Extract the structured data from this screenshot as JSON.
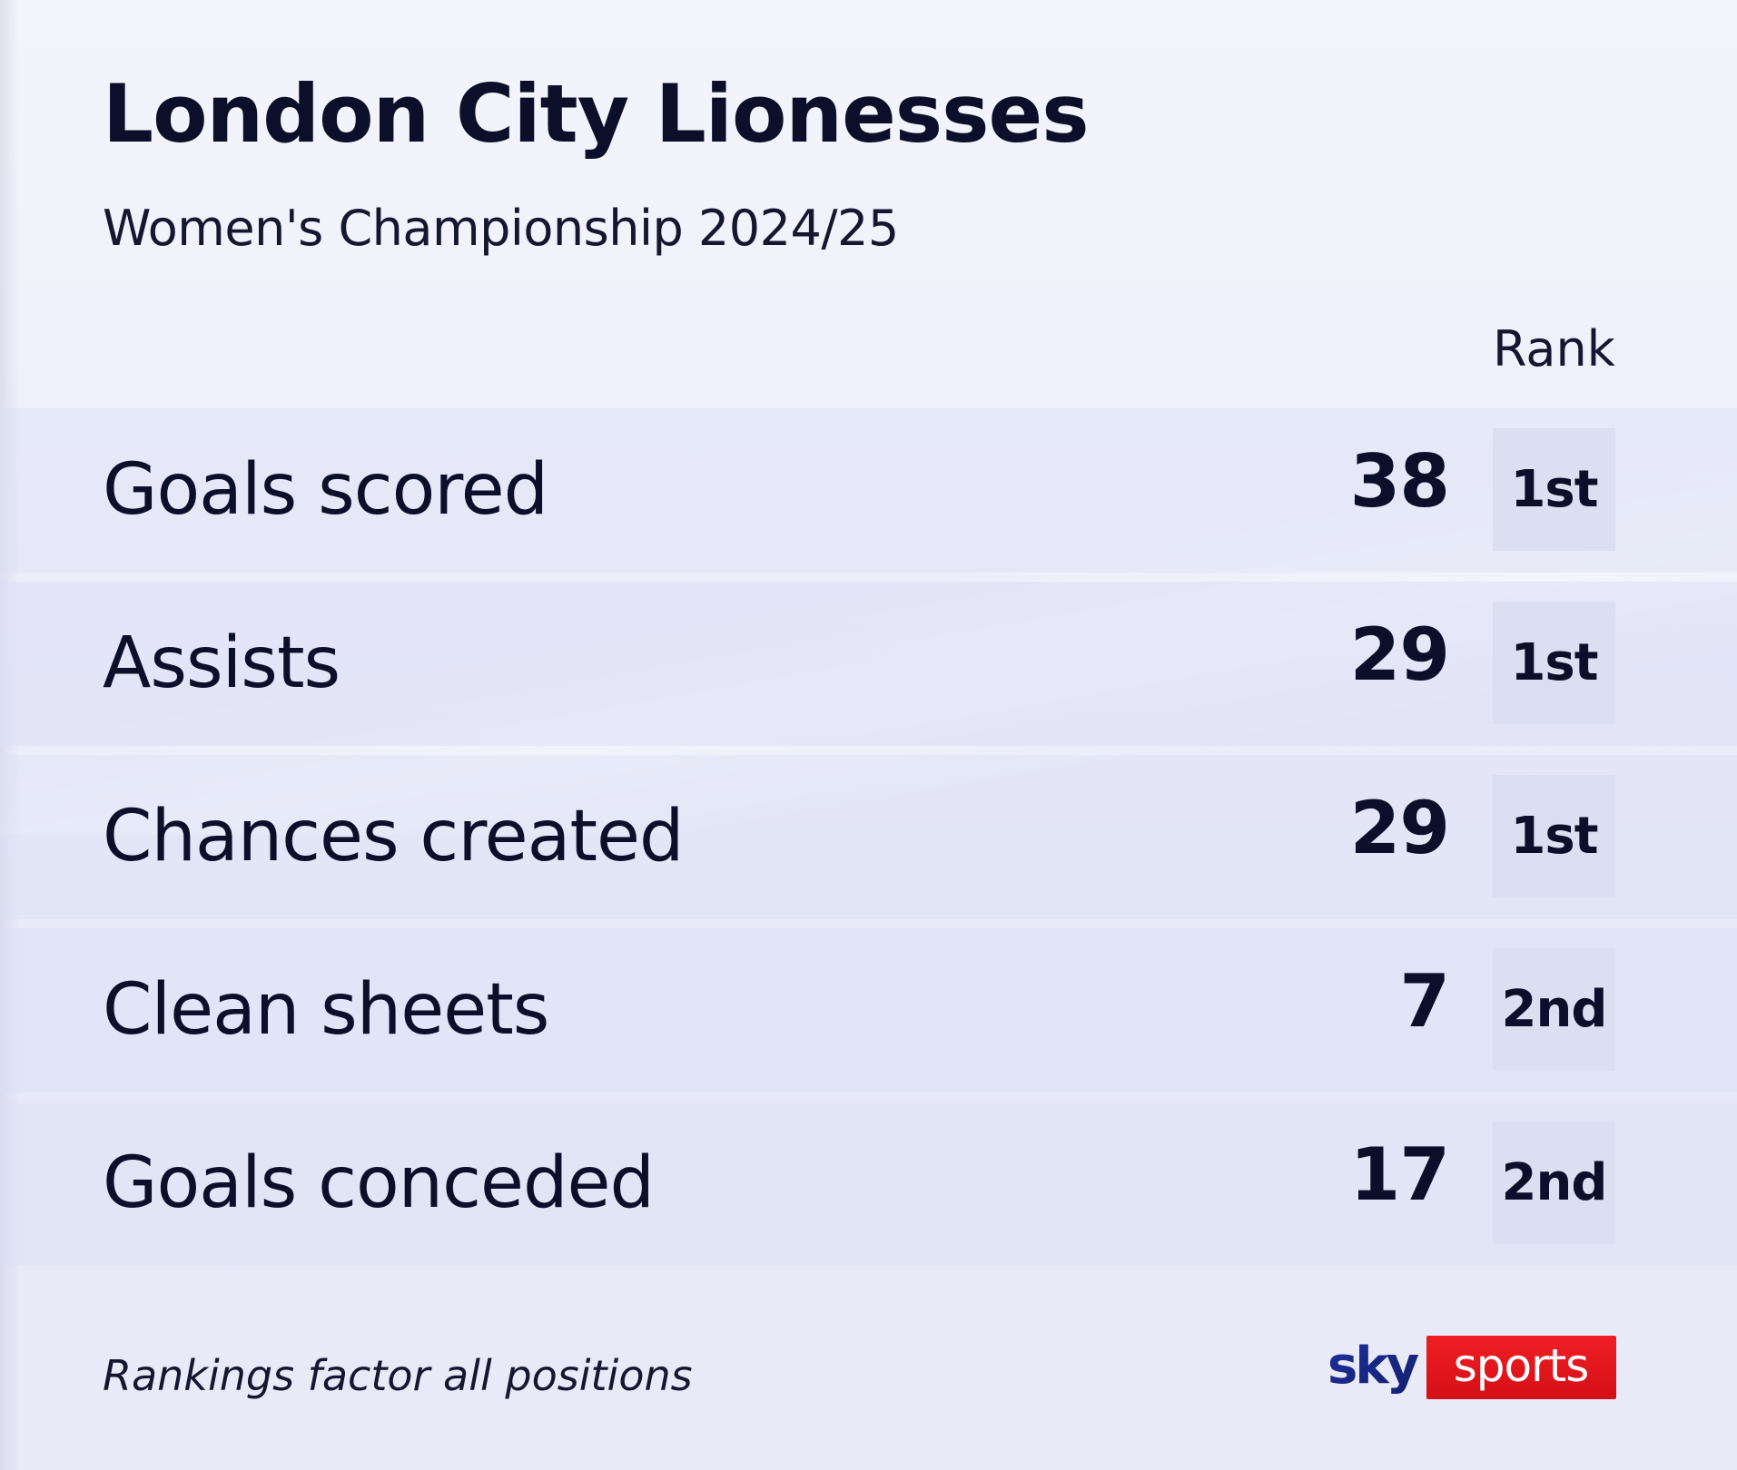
{
  "header": {
    "title": "London City Lionesses",
    "subtitle": "Women's Championship 2024/25",
    "rank_column": "Rank"
  },
  "stats": [
    {
      "label": "Goals scored",
      "value": "38",
      "rank": "1st"
    },
    {
      "label": "Assists",
      "value": "29",
      "rank": "1st"
    },
    {
      "label": "Chances created",
      "value": "29",
      "rank": "1st"
    },
    {
      "label": "Clean sheets",
      "value": "7",
      "rank": "2nd"
    },
    {
      "label": "Goals conceded",
      "value": "17",
      "rank": "2nd"
    }
  ],
  "footer": {
    "note": "Rankings factor all positions",
    "logo_sky": "sky",
    "logo_sports": "sports"
  },
  "colors": {
    "background": "#eeeffa",
    "rank_box": "#dcdef1",
    "text": "#0b0f2a",
    "sky_blue": "#1b2a8c",
    "sports_red": "#e3141b"
  }
}
